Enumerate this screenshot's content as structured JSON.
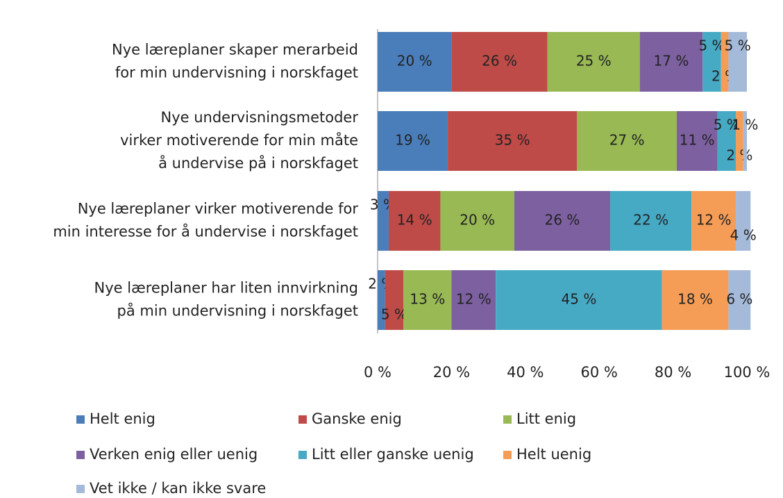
{
  "chart_data": {
    "type": "stacked-bar-horizontal",
    "categories": [
      [
        "Nye læreplaner skaper merarbeid",
        "for min undervisning i norskfaget"
      ],
      [
        "Nye undervisningsmetoder",
        "virker motiverende for min måte",
        "å undervise på i norskfaget"
      ],
      [
        "Nye læreplaner virker motiverende for",
        "min interesse for å undervise i norskfaget"
      ],
      [
        "Nye læreplaner har liten innvirkning",
        "på min undervisning i norskfaget"
      ]
    ],
    "series": [
      {
        "name": "Helt enig",
        "color": "#4a7ebb",
        "values": [
          20,
          19,
          3,
          2
        ],
        "value_labels": [
          "20 %",
          "19 %",
          "3 %",
          "2 %"
        ]
      },
      {
        "name": "Ganske enig",
        "color": "#be4b48",
        "values": [
          26,
          35,
          14,
          5
        ],
        "value_labels": [
          "26 %",
          "35 %",
          "14 %",
          "5 %"
        ]
      },
      {
        "name": "Litt enig",
        "color": "#98b954",
        "values": [
          25,
          27,
          20,
          13
        ],
        "value_labels": [
          "25 %",
          "27 %",
          "20 %",
          "13 %"
        ]
      },
      {
        "name": "Verken enig eller uenig",
        "color": "#7d60a0",
        "values": [
          17,
          11,
          26,
          12
        ],
        "value_labels": [
          "17 %",
          "11 %",
          "26 %",
          "12 %"
        ]
      },
      {
        "name": "Litt eller ganske uenig",
        "color": "#46aac5",
        "values": [
          5,
          5,
          22,
          45
        ],
        "value_labels": [
          "5 %",
          "5 %",
          "22 %",
          "45 %"
        ]
      },
      {
        "name": "Helt uenig",
        "color": "#f59d56",
        "values": [
          2,
          2,
          12,
          18
        ],
        "value_labels": [
          "2 %",
          "2 %",
          "12 %",
          "18 %"
        ]
      },
      {
        "name": "Vet ikke / kan ikke svare",
        "color": "#a5b9d9",
        "values": [
          5,
          1,
          4,
          6
        ],
        "value_labels": [
          "5 %",
          "1 %",
          "4 %",
          "6 %"
        ]
      }
    ],
    "xlim": [
      0,
      100
    ],
    "xticks": [
      {
        "value": 0,
        "label": "0 %"
      },
      {
        "value": 20,
        "label": "20 %"
      },
      {
        "value": 40,
        "label": "40 %"
      },
      {
        "value": 60,
        "label": "60 %"
      },
      {
        "value": 80,
        "label": "80 %"
      },
      {
        "value": 100,
        "label": "100 %"
      }
    ]
  }
}
